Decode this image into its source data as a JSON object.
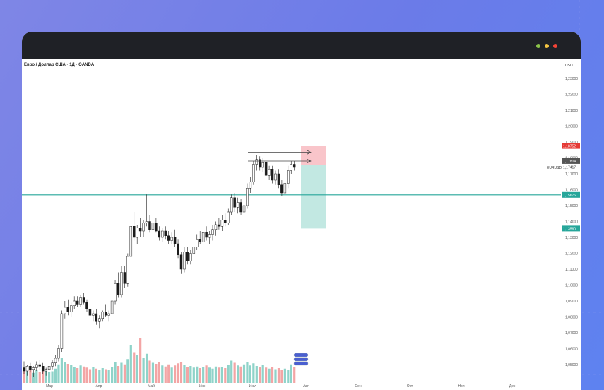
{
  "window": {
    "title_dots": [
      {
        "name": "minimize-dot",
        "color": "#8bc34a"
      },
      {
        "name": "maximize-dot",
        "color": "#f5c542"
      },
      {
        "name": "close-dot",
        "color": "#f44336"
      }
    ]
  },
  "chart": {
    "symbol_title": "Евро / Доллар США · 1Д · OANDA",
    "currency": "USD",
    "symbol_label": "EURUSD",
    "horizontal_line_color": "#26a69a",
    "up_color": "#26a69a",
    "down_color": "#222222",
    "vol_up_color": "#8fd3c9",
    "vol_down_color": "#f3a5a5"
  },
  "chart_data": {
    "type": "candlestick",
    "y_ticks": [
      "1,23000",
      "1,22000",
      "1,21000",
      "1,20000",
      "1,19000",
      "1,18000",
      "1,17000",
      "1,16000",
      "1,15000",
      "1,14000",
      "1,13000",
      "1,12000",
      "1,11000",
      "1,10000",
      "1,09000",
      "1,08000",
      "1,07000",
      "1,06000",
      "1,05000"
    ],
    "x_ticks": [
      "Мар",
      "Апр",
      "Май",
      "Июн",
      "Июл",
      "Авг",
      "Сен",
      "Окт",
      "Ноя",
      "Дек"
    ],
    "ylim": [
      1.045,
      1.235
    ],
    "price_labels": [
      {
        "text": "1,18752",
        "value": 1.18752,
        "color": "#e53935"
      },
      {
        "text": "1,17804",
        "value": 1.17804,
        "color": "#555555"
      },
      {
        "text": "1,17417",
        "value": 1.17417,
        "color": "#ffffff"
      },
      {
        "text": "1,15676",
        "value": 1.15676,
        "color": "#26a69a"
      },
      {
        "text": "1,13560",
        "value": 1.1356,
        "color": "#26a69a"
      }
    ],
    "horizontal_level": 1.15676,
    "position_tool": {
      "entry": 1.17804,
      "stop": 1.18752,
      "target": 1.1356
    },
    "arrows": [
      1.1835,
      1.178
    ],
    "candles": [
      [
        1.048,
        1.052,
        1.044,
        1.046
      ],
      [
        1.046,
        1.05,
        1.043,
        1.049
      ],
      [
        1.049,
        1.051,
        1.045,
        1.047
      ],
      [
        1.047,
        1.049,
        1.042,
        1.048
      ],
      [
        1.048,
        1.052,
        1.046,
        1.05
      ],
      [
        1.05,
        1.053,
        1.047,
        1.049
      ],
      [
        1.049,
        1.051,
        1.044,
        1.046
      ],
      [
        1.046,
        1.048,
        1.043,
        1.047
      ],
      [
        1.047,
        1.05,
        1.045,
        1.049
      ],
      [
        1.049,
        1.053,
        1.047,
        1.051
      ],
      [
        1.051,
        1.056,
        1.049,
        1.054
      ],
      [
        1.054,
        1.062,
        1.052,
        1.06
      ],
      [
        1.06,
        1.084,
        1.058,
        1.082
      ],
      [
        1.082,
        1.09,
        1.079,
        1.086
      ],
      [
        1.086,
        1.091,
        1.081,
        1.083
      ],
      [
        1.083,
        1.089,
        1.08,
        1.087
      ],
      [
        1.087,
        1.093,
        1.085,
        1.09
      ],
      [
        1.09,
        1.093,
        1.086,
        1.088
      ],
      [
        1.088,
        1.094,
        1.086,
        1.092
      ],
      [
        1.092,
        1.095,
        1.088,
        1.089
      ],
      [
        1.089,
        1.091,
        1.083,
        1.085
      ],
      [
        1.085,
        1.088,
        1.079,
        1.081
      ],
      [
        1.081,
        1.084,
        1.077,
        1.082
      ],
      [
        1.082,
        1.085,
        1.075,
        1.077
      ],
      [
        1.077,
        1.081,
        1.073,
        1.079
      ],
      [
        1.079,
        1.084,
        1.077,
        1.083
      ],
      [
        1.083,
        1.088,
        1.08,
        1.081
      ],
      [
        1.081,
        1.084,
        1.077,
        1.082
      ],
      [
        1.082,
        1.092,
        1.08,
        1.09
      ],
      [
        1.09,
        1.103,
        1.088,
        1.101
      ],
      [
        1.101,
        1.108,
        1.092,
        1.094
      ],
      [
        1.094,
        1.112,
        1.092,
        1.108
      ],
      [
        1.108,
        1.112,
        1.098,
        1.101
      ],
      [
        1.101,
        1.12,
        1.099,
        1.118
      ],
      [
        1.118,
        1.14,
        1.116,
        1.137
      ],
      [
        1.137,
        1.146,
        1.128,
        1.13
      ],
      [
        1.13,
        1.138,
        1.126,
        1.136
      ],
      [
        1.136,
        1.142,
        1.13,
        1.134
      ],
      [
        1.134,
        1.141,
        1.13,
        1.139
      ],
      [
        1.139,
        1.157,
        1.137,
        1.14
      ],
      [
        1.14,
        1.144,
        1.133,
        1.135
      ],
      [
        1.135,
        1.141,
        1.132,
        1.139
      ],
      [
        1.139,
        1.142,
        1.133,
        1.134
      ],
      [
        1.134,
        1.137,
        1.128,
        1.13
      ],
      [
        1.13,
        1.136,
        1.127,
        1.134
      ],
      [
        1.134,
        1.137,
        1.129,
        1.131
      ],
      [
        1.131,
        1.134,
        1.126,
        1.128
      ],
      [
        1.128,
        1.133,
        1.126,
        1.13
      ],
      [
        1.13,
        1.135,
        1.124,
        1.126
      ],
      [
        1.126,
        1.129,
        1.117,
        1.119
      ],
      [
        1.119,
        1.121,
        1.107,
        1.11
      ],
      [
        1.11,
        1.124,
        1.108,
        1.121
      ],
      [
        1.121,
        1.124,
        1.113,
        1.115
      ],
      [
        1.115,
        1.122,
        1.113,
        1.12
      ],
      [
        1.12,
        1.126,
        1.118,
        1.124
      ],
      [
        1.124,
        1.132,
        1.122,
        1.129
      ],
      [
        1.129,
        1.134,
        1.126,
        1.127
      ],
      [
        1.127,
        1.136,
        1.125,
        1.133
      ],
      [
        1.133,
        1.137,
        1.128,
        1.13
      ],
      [
        1.13,
        1.134,
        1.126,
        1.132
      ],
      [
        1.132,
        1.138,
        1.128,
        1.135
      ],
      [
        1.135,
        1.14,
        1.131,
        1.138
      ],
      [
        1.138,
        1.142,
        1.135,
        1.137
      ],
      [
        1.137,
        1.144,
        1.134,
        1.141
      ],
      [
        1.141,
        1.145,
        1.137,
        1.139
      ],
      [
        1.139,
        1.148,
        1.138,
        1.146
      ],
      [
        1.146,
        1.157,
        1.144,
        1.155
      ],
      [
        1.155,
        1.158,
        1.146,
        1.149
      ],
      [
        1.149,
        1.155,
        1.145,
        1.152
      ],
      [
        1.152,
        1.154,
        1.144,
        1.146
      ],
      [
        1.146,
        1.152,
        1.141,
        1.15
      ],
      [
        1.15,
        1.164,
        1.148,
        1.161
      ],
      [
        1.161,
        1.168,
        1.158,
        1.165
      ],
      [
        1.165,
        1.178,
        1.163,
        1.176
      ],
      [
        1.176,
        1.182,
        1.172,
        1.179
      ],
      [
        1.179,
        1.181,
        1.172,
        1.174
      ],
      [
        1.174,
        1.18,
        1.171,
        1.177
      ],
      [
        1.177,
        1.179,
        1.167,
        1.169
      ],
      [
        1.169,
        1.175,
        1.166,
        1.173
      ],
      [
        1.173,
        1.175,
        1.164,
        1.166
      ],
      [
        1.166,
        1.172,
        1.163,
        1.17
      ],
      [
        1.17,
        1.173,
        1.161,
        1.163
      ],
      [
        1.163,
        1.166,
        1.156,
        1.158
      ],
      [
        1.158,
        1.166,
        1.155,
        1.164
      ],
      [
        1.164,
        1.175,
        1.161,
        1.172
      ],
      [
        1.172,
        1.178,
        1.17,
        1.176
      ],
      [
        1.176,
        1.178,
        1.172,
        1.174
      ]
    ],
    "volumes": [
      0.28,
      0.22,
      0.25,
      0.19,
      0.24,
      0.21,
      0.26,
      0.23,
      0.2,
      0.22,
      0.27,
      0.35,
      0.48,
      0.4,
      0.36,
      0.34,
      0.3,
      0.28,
      0.33,
      0.31,
      0.29,
      0.26,
      0.3,
      0.27,
      0.25,
      0.28,
      0.26,
      0.24,
      0.3,
      0.39,
      0.32,
      0.38,
      0.35,
      0.45,
      0.72,
      0.58,
      0.52,
      0.85,
      0.48,
      0.55,
      0.42,
      0.38,
      0.36,
      0.4,
      0.33,
      0.31,
      0.35,
      0.29,
      0.33,
      0.37,
      0.4,
      0.34,
      0.3,
      0.32,
      0.29,
      0.31,
      0.28,
      0.3,
      0.33,
      0.29,
      0.27,
      0.31,
      0.29,
      0.3,
      0.28,
      0.34,
      0.42,
      0.38,
      0.33,
      0.31,
      0.35,
      0.39,
      0.33,
      0.37,
      0.32,
      0.3,
      0.34,
      0.29,
      0.27,
      0.3,
      0.26,
      0.28,
      0.25,
      0.27,
      0.24,
      0.35,
      0.3
    ]
  }
}
